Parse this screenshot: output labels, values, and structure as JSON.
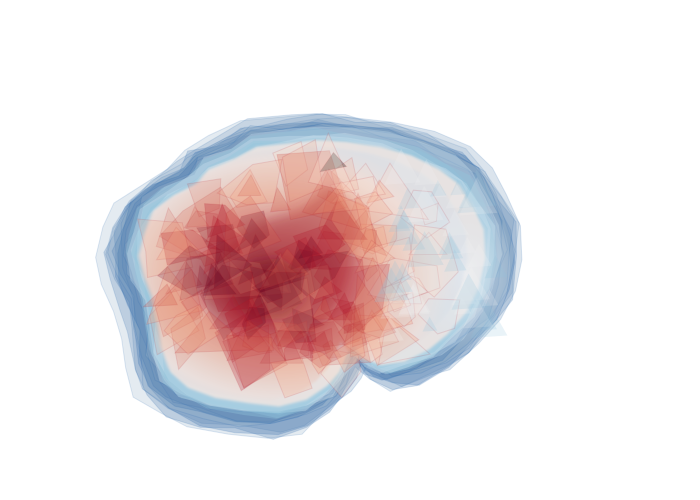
{
  "figure": {
    "kind": "3d-volume-isosurface",
    "colorscale": [
      "#2166ac",
      "#4393c3",
      "#92c5de",
      "#d1e5f0",
      "#f7f7f7",
      "#fddbc7",
      "#f4a582",
      "#d6604d",
      "#b2182b",
      "#67001f"
    ],
    "background": "#ffffff",
    "opacity_hint": "translucent"
  }
}
